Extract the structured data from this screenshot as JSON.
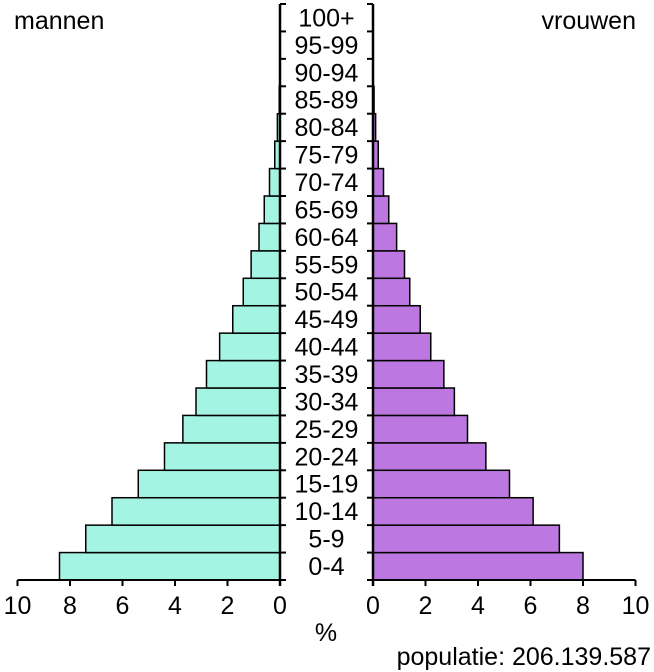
{
  "chart_data": {
    "type": "bar",
    "subtype": "population-pyramid",
    "title": "",
    "left_label": "mannen",
    "right_label": "vrouwen",
    "xlabel": "%",
    "footer": "populatie: 206.139.587",
    "xlim": [
      0,
      10
    ],
    "x_ticks": [
      0,
      2,
      4,
      6,
      8,
      10
    ],
    "x_tick_labels": [
      "0",
      "2",
      "4",
      "6",
      "8",
      "10"
    ],
    "grid": false,
    "legend": "none",
    "categories": [
      "0-4",
      "5-9",
      "10-14",
      "15-19",
      "20-24",
      "25-29",
      "30-34",
      "35-39",
      "40-44",
      "45-49",
      "50-54",
      "55-59",
      "60-64",
      "65-69",
      "70-74",
      "75-79",
      "80-84",
      "85-89",
      "90-94",
      "95-99",
      "100+"
    ],
    "series": [
      {
        "name": "mannen",
        "color": "#a4f4e4",
        "side": "left",
        "values": [
          8.4,
          7.4,
          6.4,
          5.4,
          4.4,
          3.7,
          3.2,
          2.8,
          2.3,
          1.8,
          1.4,
          1.1,
          0.8,
          0.6,
          0.4,
          0.2,
          0.1,
          0.03,
          0.01,
          0.0,
          0.0
        ]
      },
      {
        "name": "vrouwen",
        "color": "#bc78e0",
        "side": "right",
        "values": [
          8.0,
          7.1,
          6.1,
          5.2,
          4.3,
          3.6,
          3.1,
          2.7,
          2.2,
          1.8,
          1.4,
          1.2,
          0.9,
          0.6,
          0.4,
          0.2,
          0.1,
          0.04,
          0.01,
          0.0,
          0.0
        ]
      }
    ]
  }
}
